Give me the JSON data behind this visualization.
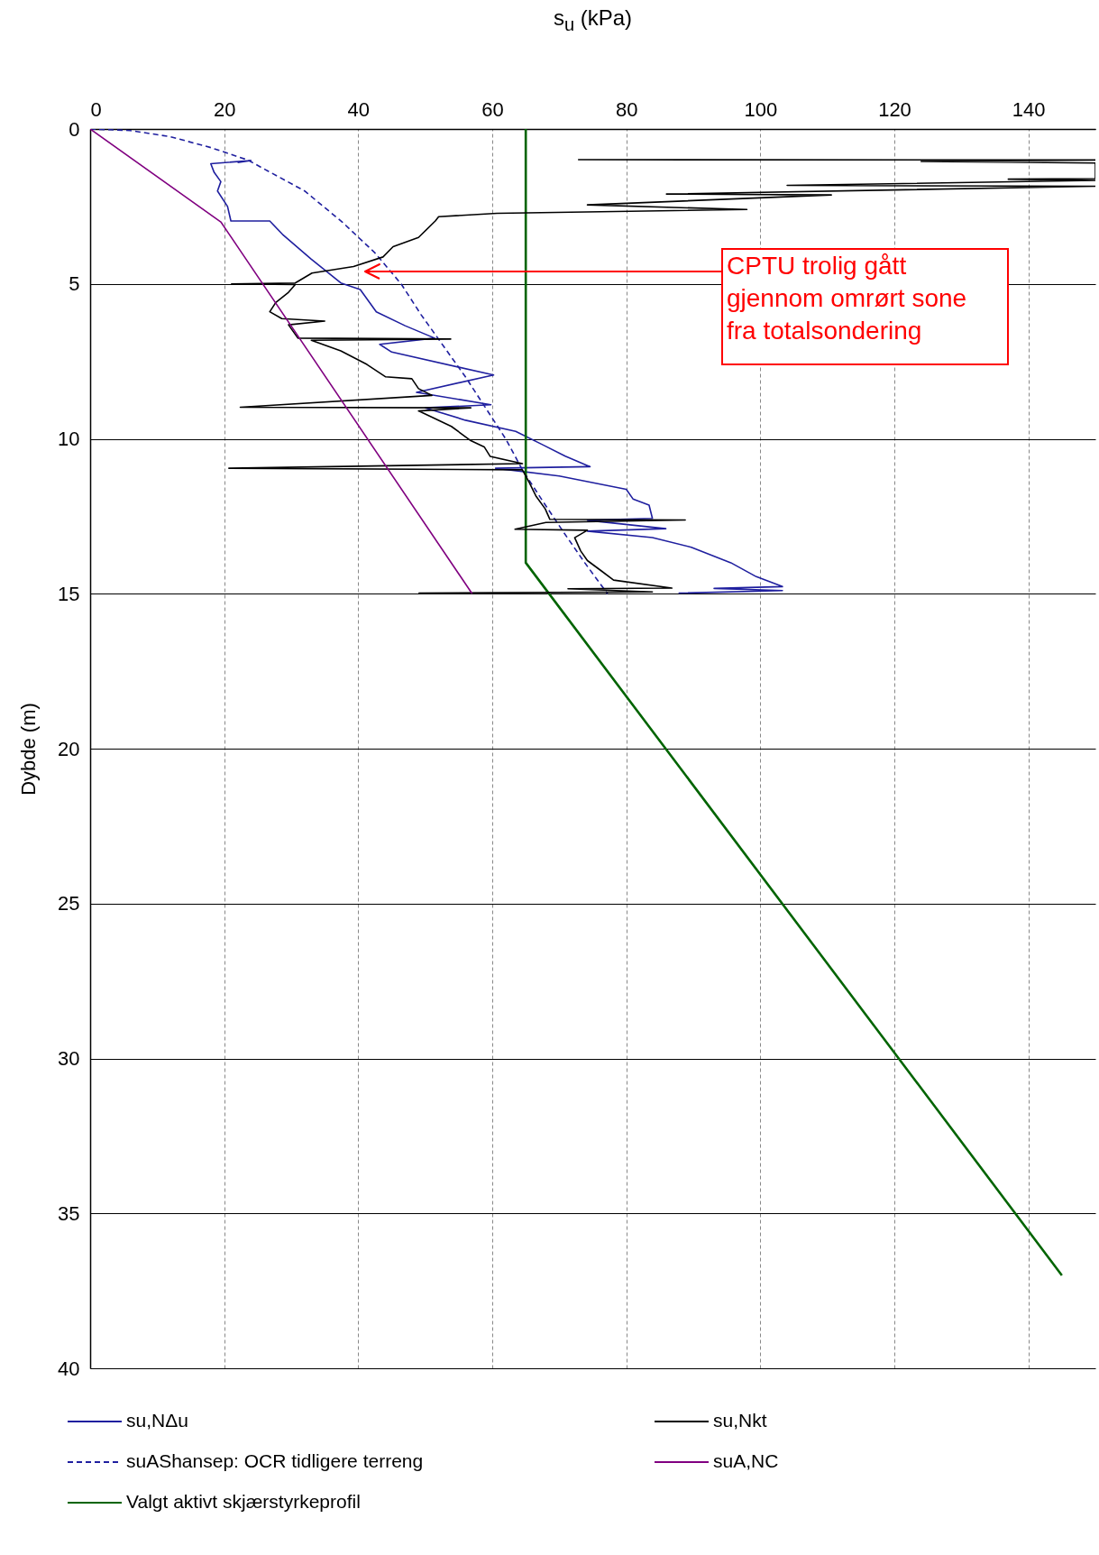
{
  "chart_data": {
    "type": "line",
    "xlabel": "s$_{u}$ (kPa)",
    "ylabel": "Dybde (m)",
    "xlim": [
      0,
      150
    ],
    "xticks": [
      0,
      20,
      40,
      60,
      80,
      100,
      120,
      140
    ],
    "ylim": [
      40,
      0
    ],
    "yticks": [
      0,
      5,
      10,
      15,
      20,
      25,
      30,
      35,
      40
    ],
    "grid": true,
    "legend": "bottom",
    "line_style": "solid",
    "annotations": [
      "CPTU trolig gått gjennom omrørt sone fra totalsondering"
    ],
    "series": [
      {
        "name": "su,NΔu",
        "color": "#1f1f9f",
        "x": [
          22,
          24,
          18,
          18.5,
          19.5,
          19,
          20.5,
          21,
          26.8,
          28.7,
          33,
          37.4,
          40.3,
          42.7,
          47,
          51.4,
          43.2,
          45,
          60.2,
          48.7,
          59.8,
          50,
          56,
          63.5,
          67.6,
          70.9,
          74.6,
          60.5,
          70,
          80,
          81,
          83.4,
          83.9,
          74.2,
          85.9,
          74.2,
          83.9,
          89.7,
          95.6,
          99.4,
          103.3,
          93.1,
          103.3,
          87.8
        ],
        "values": [
          1.08,
          1.02,
          1.12,
          1.4,
          1.7,
          2.0,
          2.5,
          2.97,
          2.97,
          3.4,
          4.2,
          4.97,
          5.18,
          5.9,
          6.35,
          6.75,
          6.95,
          7.2,
          7.94,
          8.5,
          8.9,
          9.0,
          9.4,
          9.76,
          10.2,
          10.56,
          10.9,
          10.95,
          11.2,
          11.63,
          11.94,
          12.14,
          12.57,
          12.63,
          12.9,
          12.98,
          13.19,
          13.5,
          14.0,
          14.45,
          14.77,
          14.83,
          14.9,
          14.98
        ]
      },
      {
        "name": "suAShansep: OCR tidligere terreng",
        "color": "#1f1f9f",
        "line_style": "dashed",
        "x": [
          0,
          6,
          12,
          18,
          23.5,
          32,
          37.6,
          42.5,
          46.4,
          49.4,
          52.7,
          56,
          59,
          62,
          64.5,
          67.5,
          70.6,
          73.8,
          77.2
        ],
        "values": [
          0,
          0.05,
          0.25,
          0.6,
          1,
          2,
          3,
          4,
          5,
          6,
          7,
          8,
          9,
          10,
          11,
          12,
          13,
          14,
          15
        ]
      },
      {
        "name": "Valgt aktivt skjærstyrkeprofil",
        "color": "#006400",
        "x": [
          65,
          65,
          145
        ],
        "values": [
          0,
          14,
          37
        ]
      },
      {
        "name": "su,Nkt",
        "color": "#000000",
        "x": [
          72.8,
          150,
          124,
          150,
          150,
          137,
          150,
          104,
          150,
          86,
          110.6,
          74.2,
          98,
          60.7,
          52,
          51.5,
          49,
          45.2,
          43.7,
          39.3,
          33.1,
          30.6,
          21.1,
          30.6,
          29.6,
          27.7,
          26.8,
          28.6,
          35,
          29.6,
          31,
          53.8,
          33,
          37.4,
          41.3,
          44.1,
          48,
          49,
          51,
          22.4,
          56.8,
          49,
          51,
          53.9,
          56.8,
          58.8,
          59.7,
          64.5,
          20.7,
          64.5,
          65.5,
          66.5,
          67.9,
          68.6,
          88.8,
          68,
          63.4,
          74.2,
          72.3,
          73.2,
          74.2,
          76.2,
          78.1,
          86.8,
          71.3,
          83.9,
          49
        ],
        "values": [
          0.99,
          1.0,
          1.05,
          1.1,
          1.6,
          1.62,
          1.66,
          1.82,
          1.85,
          2.1,
          2.13,
          2.45,
          2.6,
          2.72,
          2.83,
          2.97,
          3.5,
          3.8,
          4.13,
          4.44,
          4.65,
          4.97,
          5.0,
          5.02,
          5.27,
          5.6,
          5.9,
          6.12,
          6.2,
          6.32,
          6.75,
          6.78,
          6.82,
          7.16,
          7.6,
          8.0,
          8.06,
          8.38,
          8.6,
          8.98,
          9.0,
          9.1,
          9.3,
          9.6,
          10.06,
          10.26,
          10.57,
          10.8,
          10.95,
          11.0,
          11.4,
          11.84,
          12.26,
          12.6,
          12.62,
          12.7,
          12.92,
          12.95,
          13.19,
          13.62,
          13.93,
          14.25,
          14.56,
          14.82,
          14.84,
          14.94,
          14.98
        ]
      },
      {
        "name": "suA,NC",
        "color": "#800080",
        "x": [
          0,
          19.5,
          57
        ],
        "values": [
          0,
          3,
          15
        ]
      }
    ]
  }
}
